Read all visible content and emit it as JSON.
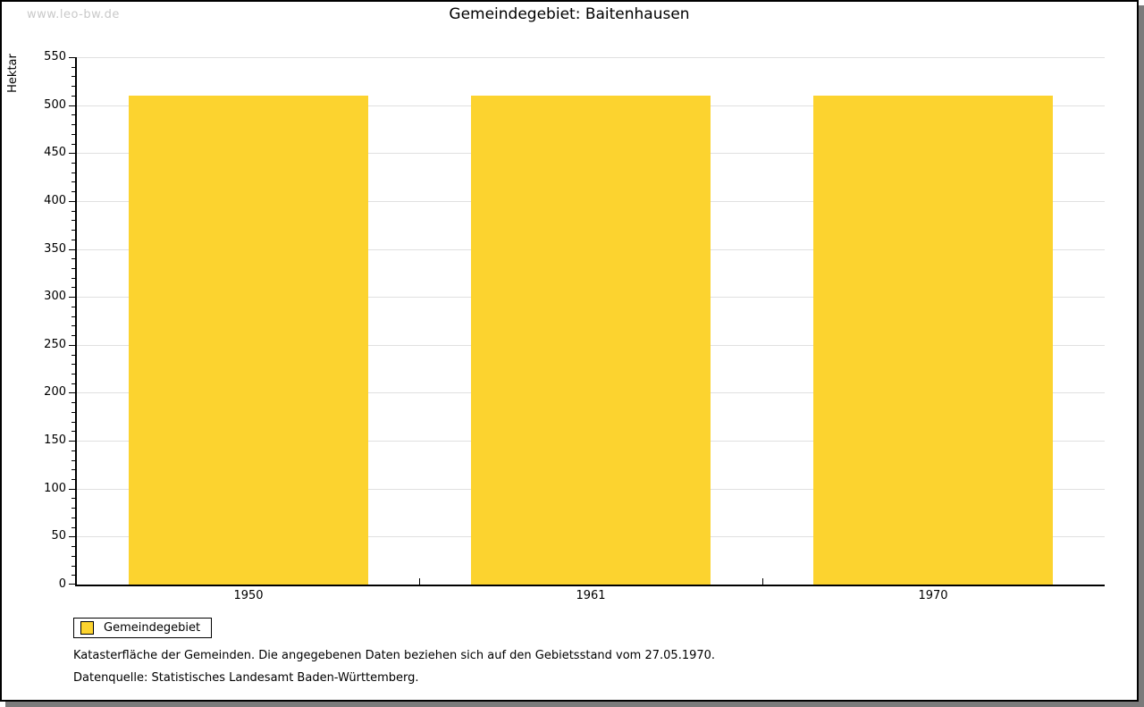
{
  "watermark": "www.leo-bw.de",
  "header": {
    "title": "Gemeindegebiet: Baitenhausen"
  },
  "legend": {
    "label": "Gemeindegebiet"
  },
  "notes": {
    "line1": "Katasterfläche der Gemeinden. Die angegebenen Daten beziehen sich auf den Gebietsstand vom 27.05.1970.",
    "line2": "Datenquelle: Statistisches Landesamt Baden-Württemberg."
  },
  "chart_data": {
    "type": "bar",
    "title": "Gemeindegebiet: Baitenhausen",
    "categories": [
      "1950",
      "1961",
      "1970"
    ],
    "series": [
      {
        "name": "Gemeindegebiet",
        "values": [
          510,
          510,
          510
        ]
      }
    ],
    "xlabel": "",
    "ylabel": "Hektar",
    "ylim": [
      0,
      550
    ],
    "ytick_step": 50,
    "y_minor_tick_step": 10,
    "grid": true,
    "legend_position": "bottom-left",
    "bar_color": "#fcd32f",
    "gridline_color": "#e0e0e0",
    "axis_color": "#000000"
  }
}
